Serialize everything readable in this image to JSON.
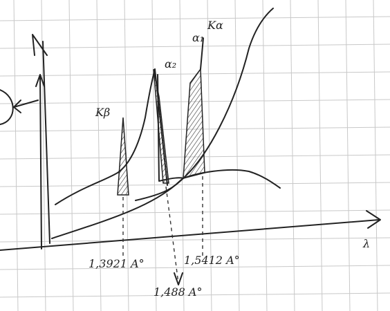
{
  "labels": {
    "k_alpha": "Kα",
    "alpha1": "α₁",
    "alpha2": "α₂",
    "k_beta": "Kβ",
    "axis_x": "λ",
    "line_k_beta": "1,3921 A°",
    "line_k_alpha": "1,5412 A°",
    "edge": "1,488 A°"
  }
}
